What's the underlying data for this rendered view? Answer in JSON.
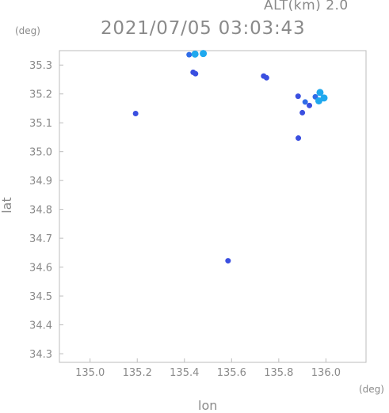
{
  "header": {
    "altitude": "ALT(km) 2.0",
    "timestamp": "2021/07/05 03:03:43"
  },
  "chart_data": {
    "type": "scatter",
    "xlabel": "lon",
    "ylabel": "lat",
    "x_unit": "(deg)",
    "y_unit": "(deg)",
    "xlim": [
      134.87,
      136.17
    ],
    "ylim": [
      34.27,
      35.35
    ],
    "xticks": [
      135.0,
      135.2,
      135.4,
      135.6,
      135.8,
      136.0
    ],
    "yticks": [
      34.3,
      34.4,
      34.5,
      34.6,
      34.7,
      34.8,
      34.9,
      35.0,
      35.1,
      35.2,
      35.3
    ],
    "grid": false,
    "colors": {
      "weak": "#3a4fe0",
      "moderate": "#2f6ce8",
      "strong": "#1fa8ee"
    },
    "echoes": [
      {
        "lon": 135.193,
        "lat": 35.132,
        "intensity": "weak"
      },
      {
        "lon": 135.437,
        "lat": 35.275,
        "intensity": "weak"
      },
      {
        "lon": 135.447,
        "lat": 35.27,
        "intensity": "weak"
      },
      {
        "lon": 135.42,
        "lat": 35.336,
        "intensity": "moderate"
      },
      {
        "lon": 135.445,
        "lat": 35.338,
        "intensity": "strong"
      },
      {
        "lon": 135.48,
        "lat": 35.34,
        "intensity": "strong"
      },
      {
        "lon": 135.736,
        "lat": 35.262,
        "intensity": "weak"
      },
      {
        "lon": 135.748,
        "lat": 35.256,
        "intensity": "weak"
      },
      {
        "lon": 135.882,
        "lat": 35.192,
        "intensity": "weak"
      },
      {
        "lon": 135.912,
        "lat": 35.172,
        "intensity": "moderate"
      },
      {
        "lon": 135.93,
        "lat": 35.16,
        "intensity": "weak"
      },
      {
        "lon": 135.955,
        "lat": 35.19,
        "intensity": "moderate"
      },
      {
        "lon": 135.975,
        "lat": 35.205,
        "intensity": "strong"
      },
      {
        "lon": 135.992,
        "lat": 35.186,
        "intensity": "strong"
      },
      {
        "lon": 135.97,
        "lat": 35.176,
        "intensity": "strong"
      },
      {
        "lon": 135.9,
        "lat": 35.135,
        "intensity": "weak"
      },
      {
        "lon": 135.883,
        "lat": 35.047,
        "intensity": "weak"
      },
      {
        "lon": 135.585,
        "lat": 34.622,
        "intensity": "weak"
      }
    ]
  }
}
